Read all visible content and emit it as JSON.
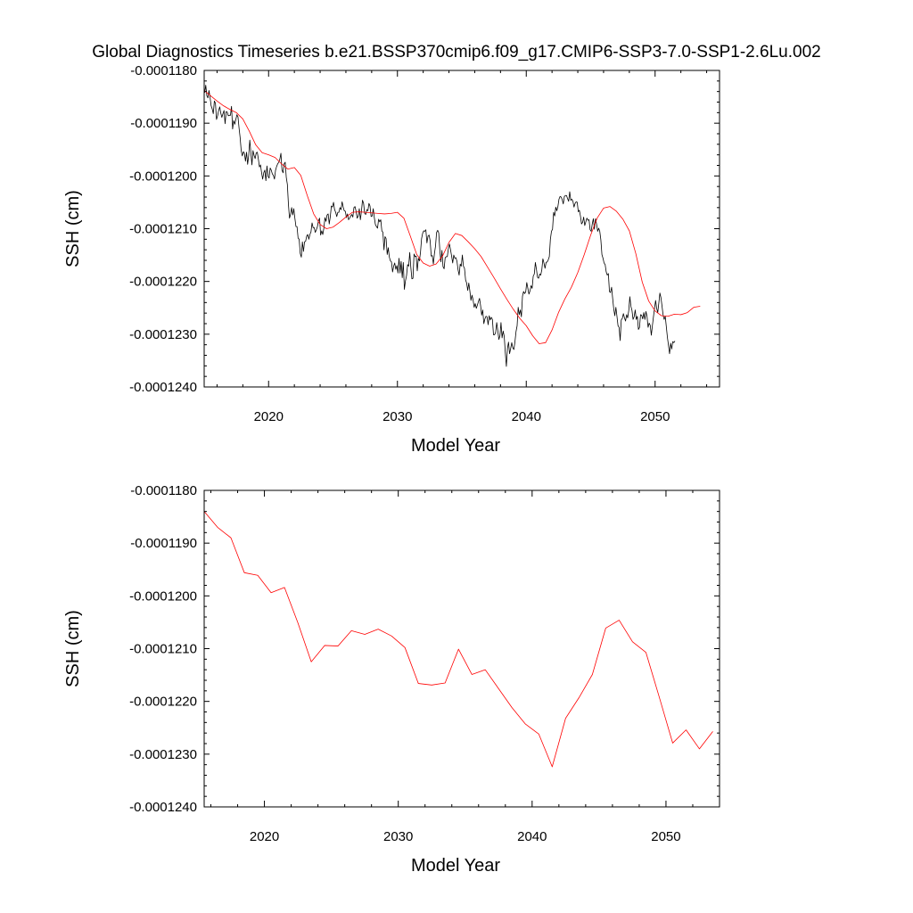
{
  "title": "Global Diagnostics Timeseries b.e21.BSSP370cmip6.f09_g17.CMIP6-SSP3-7.0-SSP1-2.6Lu.002",
  "colors": {
    "monthly": "#000000",
    "annual": "#ff0000"
  },
  "chart_data": [
    {
      "type": "line",
      "xlabel": "Model Year",
      "ylabel": "SSH (cm)",
      "xlim": [
        2015,
        2055
      ],
      "ylim": [
        -0.000124,
        -0.000118
      ],
      "xticks": [
        2020,
        2030,
        2040,
        2050
      ],
      "xtick_labels": [
        "2020",
        "2030",
        "2040",
        "2050"
      ],
      "yticks": [
        -0.000124,
        -0.000123,
        -0.000122,
        -0.000121,
        -0.00012,
        -0.000119,
        -0.000118
      ],
      "ytick_labels": [
        "-0.0001240",
        "-0.0001230",
        "-0.0001220",
        "-0.0001210",
        "-0.0001200",
        "-0.0001190",
        "-0.0001180"
      ],
      "series": [
        {
          "name": "monthly",
          "color": "#000000",
          "x_start": 2015.04,
          "x_step": 0.08333,
          "values": [
            -0.00011842,
            -0.00011828,
            -0.00011848,
            -0.00011852,
            -0.00011838,
            -0.00011851,
            -0.00011867,
            -0.00011873,
            -0.00011882,
            -0.00011858,
            -0.00011862,
            -0.00011893,
            -0.00011886,
            -0.00011876,
            -0.00011869,
            -0.00011881,
            -0.00011889,
            -0.00011882,
            -0.00011876,
            -0.00011901,
            -0.00011878,
            -0.00011879,
            -0.00011886,
            -0.00011885,
            -0.00011885,
            -0.00011868,
            -0.00011911,
            -0.00011895,
            -0.00011902,
            -0.00011893,
            -0.00011884,
            -0.00011888,
            -0.00011909,
            -0.00011927,
            -0.00011952,
            -0.00011962,
            -0.00011954,
            -0.00011957,
            -0.00011972,
            -0.00011955,
            -0.00011978,
            -0.00011961,
            -0.00011932,
            -0.00011956,
            -0.00011979,
            -0.00011952,
            -0.00011961,
            -0.00011967,
            -0.00011956,
            -0.00011955,
            -0.00011968,
            -0.00011983,
            -0.00011979,
            -0.00011994,
            -0.00012006,
            -0.00011994,
            -0.00011989,
            -0.00012009,
            -0.00011981,
            -0.00012001,
            -0.00012004,
            -0.00011985,
            -0.00011989,
            -0.00011996,
            -0.00011999,
            -0.00012006,
            -0.00011989,
            -0.00011982,
            -0.00011977,
            -0.00011974,
            -0.00011968,
            -0.00011957,
            -0.00011989,
            -0.00011994,
            -0.00011977,
            -0.00011974,
            -0.00012003,
            -0.00012016,
            -0.00012054,
            -0.0001208,
            -0.00012073,
            -0.0001206,
            -0.00012074,
            -0.00012062,
            -0.0001208,
            -0.00012096,
            -0.00012096,
            -0.00012118,
            -0.0001212,
            -0.00012147,
            -0.00012154,
            -0.00012125,
            -0.00012143,
            -0.00012125,
            -0.00012124,
            -0.00012114,
            -0.00012111,
            -0.0001212,
            -0.00012111,
            -0.00012106,
            -0.00012089,
            -0.00012098,
            -0.00012098,
            -0.00012107,
            -0.00012102,
            -0.00012096,
            -0.00012085,
            -0.0001208,
            -0.00012112,
            -0.00012104,
            -0.00012111,
            -0.00012099,
            -0.00012079,
            -0.00012086,
            -0.00012074,
            -0.00012072,
            -0.00012091,
            -0.00012077,
            -0.00012057,
            -0.00012059,
            -0.0001205,
            -0.00012064,
            -0.00012069,
            -0.00012077,
            -0.00012069,
            -0.00012069,
            -0.0001206,
            -0.00012064,
            -0.00012049,
            -0.00012059,
            -0.00012066,
            -0.00012067,
            -0.00012079,
            -0.00012072,
            -0.00012083,
            -0.0001208,
            -0.00012076,
            -0.00012073,
            -0.00012078,
            -0.0001206,
            -0.00012058,
            -0.00012067,
            -0.0001208,
            -0.00012076,
            -0.00012062,
            -0.00012083,
            -0.00012067,
            -0.00012046,
            -0.00012052,
            -0.00012071,
            -0.00012073,
            -0.00012064,
            -0.00012066,
            -0.00012052,
            -0.00012057,
            -0.00012077,
            -0.00012076,
            -0.00012062,
            -0.00012079,
            -0.00012092,
            -0.00012096,
            -0.00012099,
            -0.00012082,
            -0.00012087,
            -0.00012083,
            -0.00012104,
            -0.00012107,
            -0.0001214,
            -0.00012115,
            -0.00012119,
            -0.00012149,
            -0.00012136,
            -0.00012154,
            -0.00012161,
            -0.00012163,
            -0.00012182,
            -0.00012171,
            -0.00012165,
            -0.00012177,
            -0.0001217,
            -0.00012184,
            -0.00012156,
            -0.00012184,
            -0.00012162,
            -0.00012193,
            -0.00012164,
            -0.00012215,
            -0.00012199,
            -0.00012189,
            -0.00012168,
            -0.00012171,
            -0.00012145,
            -0.00012173,
            -0.00012195,
            -0.00012194,
            -0.00012148,
            -0.00012153,
            -0.00012152,
            -0.0001218,
            -0.00012156,
            -0.00012161,
            -0.00012145,
            -0.00012119,
            -0.00012109,
            -0.00012104,
            -0.00012105,
            -0.00012102,
            -0.00012127,
            -0.00012114,
            -0.00012112,
            -0.00012123,
            -0.00012152,
            -0.00012151,
            -0.00012167,
            -0.00012147,
            -0.00012133,
            -0.00012107,
            -0.00012103,
            -0.00012108,
            -0.0001214,
            -0.00012163,
            -0.00012141,
            -0.00012172,
            -0.00012176,
            -0.00012155,
            -0.00012153,
            -0.00012153,
            -0.00012137,
            -0.00012129,
            -0.0001214,
            -0.00012152,
            -0.00012165,
            -0.0001215,
            -0.00012156,
            -0.00012155,
            -0.00012162,
            -0.00012178,
            -0.00012188,
            -0.00012167,
            -0.00012171,
            -0.0001215,
            -0.00012171,
            -0.00012175,
            -0.00012197,
            -0.00012203,
            -0.00012217,
            -0.00012203,
            -0.00012218,
            -0.00012236,
            -0.00012226,
            -0.00012235,
            -0.00012249,
            -0.00012242,
            -0.00012251,
            -0.00012245,
            -0.00012238,
            -0.00012232,
            -0.00012246,
            -0.00012264,
            -0.00012254,
            -0.0001228,
            -0.00012271,
            -0.00012266,
            -0.00012267,
            -0.00012282,
            -0.00012265,
            -0.00012273,
            -0.00012268,
            -0.00012272,
            -0.00012301,
            -0.00012301,
            -0.00012297,
            -0.00012278,
            -0.00012293,
            -0.0001231,
            -0.00012303,
            -0.00012278,
            -0.00012307,
            -0.00012294,
            -0.00012304,
            -0.00012335,
            -0.00012361,
            -0.00012327,
            -0.00012315,
            -0.00012337,
            -0.00012327,
            -0.00012316,
            -0.00012326,
            -0.00012329,
            -0.00012314,
            -0.00012295,
            -0.00012284,
            -0.00012249,
            -0.00012263,
            -0.00012254,
            -0.00012267,
            -0.00012228,
            -0.00012219,
            -0.00012223,
            -0.0001222,
            -0.00012202,
            -0.00012213,
            -0.00012224,
            -0.00012218,
            -0.00012208,
            -0.00012213,
            -0.0001219,
            -0.00012186,
            -0.00012164,
            -0.00012177,
            -0.00012192,
            -0.00012194,
            -0.00012186,
            -0.00012188,
            -0.00012178,
            -0.00012157,
            -0.00012165,
            -0.00012175,
            -0.00012164,
            -0.00012163,
            -0.00012159,
            -0.00012153,
            -0.0001212,
            -0.00012105,
            -0.00012101,
            -0.00012069,
            -0.00012076,
            -0.00012059,
            -0.00012066,
            -0.00012058,
            -0.00012044,
            -0.00012039,
            -0.0001204,
            -0.00012045,
            -0.00012053,
            -0.00012039,
            -0.00012037,
            -0.00012037,
            -0.00012043,
            -0.00012048,
            -0.0001203,
            -0.00012046,
            -0.00012044,
            -0.00012048,
            -0.00012059,
            -0.00012052,
            -0.00012049,
            -0.0001205,
            -0.00012068,
            -0.00012065,
            -0.00012076,
            -0.00012091,
            -0.00012088,
            -0.00012078,
            -0.00012094,
            -0.00012087,
            -0.0001208,
            -0.00012084,
            -0.00012083,
            -0.00012102,
            -0.00012105,
            -0.00012091,
            -0.00012081,
            -0.00012101,
            -0.00012081,
            -0.00012091,
            -0.00012105,
            -0.00012099,
            -0.00012105,
            -0.00012121,
            -0.00012149,
            -0.00012156,
            -0.00012165,
            -0.00012168,
            -0.00012182,
            -0.00012188,
            -0.00012185,
            -0.00012219,
            -0.00012221,
            -0.00012211,
            -0.00012232,
            -0.00012252,
            -0.00012265,
            -0.00012249,
            -0.00012266,
            -0.00012284,
            -0.00012287,
            -0.00012312,
            -0.00012273,
            -0.0001227,
            -0.00012261,
            -0.00012269,
            -0.00012275,
            -0.00012263,
            -0.00012269,
            -0.00012255,
            -0.00012229,
            -0.00012247,
            -0.00012255,
            -0.00012272,
            -0.00012267,
            -0.00012254,
            -0.00012272,
            -0.00012266,
            -0.00012291,
            -0.00012287,
            -0.00012263,
            -0.00012264,
            -0.00012271,
            -0.00012259,
            -0.00012272,
            -0.00012257,
            -0.00012266,
            -0.00012287,
            -0.00012279,
            -0.00012283,
            -0.00012302,
            -0.00012284,
            -0.00012267,
            -0.00012251,
            -0.00012236,
            -0.00012251,
            -0.00012259,
            -0.00012241,
            -0.00012222,
            -0.00012231,
            -0.00012247,
            -0.00012264,
            -0.00012272,
            -0.00012266,
            -0.00012286,
            -0.00012306,
            -0.00012321,
            -0.00012337,
            -0.00012317,
            -0.00012328,
            -0.00012314,
            -0.00012316,
            -0.00012313
          ]
        },
        {
          "name": "smoothed",
          "color": "#ff0000",
          "x": [
            2015.0,
            2015.5,
            2016.0,
            2016.5,
            2017.0,
            2017.5,
            2018.0,
            2018.5,
            2019.0,
            2019.5,
            2020.0,
            2020.5,
            2021.0,
            2021.5,
            2022.0,
            2022.5,
            2023.0,
            2023.5,
            2024.0,
            2024.5,
            2025.0,
            2025.5,
            2026.0,
            2026.5,
            2027.0,
            2027.5,
            2028.0,
            2028.5,
            2029.0,
            2029.5,
            2030.0,
            2030.5,
            2031.0,
            2031.5,
            2032.0,
            2032.5,
            2033.0,
            2033.5,
            2034.0,
            2034.5,
            2035.0,
            2035.5,
            2036.0,
            2036.5,
            2037.0,
            2037.5,
            2038.0,
            2038.5,
            2039.0,
            2039.5,
            2040.0,
            2040.5,
            2041.0,
            2041.5,
            2042.0,
            2042.5,
            2043.0,
            2043.5,
            2044.0,
            2044.5,
            2045.0,
            2045.5,
            2046.0,
            2046.5,
            2047.0,
            2047.5,
            2048.0,
            2048.5,
            2049.0,
            2049.5,
            2050.0,
            2050.5,
            2051.0,
            2051.5,
            2052.0,
            2052.5,
            2053.0,
            2053.5
          ],
          "values": [
            -0.00011838,
            -0.00011848,
            -0.00011858,
            -0.00011867,
            -0.00011874,
            -0.0001188,
            -0.00011892,
            -0.00011915,
            -0.00011941,
            -0.00011956,
            -0.0001196,
            -0.00011965,
            -0.00011977,
            -0.00011987,
            -0.00011984,
            -0.00011999,
            -0.00012037,
            -0.00012072,
            -0.00012092,
            -0.000121,
            -0.00012097,
            -0.00012088,
            -0.00012078,
            -0.00012069,
            -0.00012068,
            -0.00012069,
            -0.0001207,
            -0.00012071,
            -0.00012072,
            -0.00012071,
            -0.00012069,
            -0.0001208,
            -0.00012114,
            -0.00012149,
            -0.00012165,
            -0.00012171,
            -0.00012167,
            -0.00012152,
            -0.00012126,
            -0.00012109,
            -0.00012113,
            -0.00012125,
            -0.00012138,
            -0.00012153,
            -0.00012173,
            -0.00012193,
            -0.00012214,
            -0.00012234,
            -0.00012253,
            -0.0001227,
            -0.00012284,
            -0.00012303,
            -0.00012318,
            -0.00012316,
            -0.00012292,
            -0.00012259,
            -0.00012233,
            -0.00012211,
            -0.00012183,
            -0.00012149,
            -0.00012112,
            -0.0001208,
            -0.00012061,
            -0.00012058,
            -0.00012067,
            -0.00012082,
            -0.00012104,
            -0.00012147,
            -0.00012201,
            -0.00012237,
            -0.00012256,
            -0.00012265,
            -0.00012266,
            -0.00012262,
            -0.00012263,
            -0.00012259,
            -0.00012249,
            -0.00012247
          ]
        }
      ]
    },
    {
      "type": "line",
      "xlabel": "Model Year",
      "ylabel": "SSH (cm)",
      "xlim": [
        2015.5,
        2054.0
      ],
      "ylim": [
        -0.000124,
        -0.000118
      ],
      "xticks": [
        2020,
        2030,
        2040,
        2050
      ],
      "xtick_labels": [
        "2020",
        "2030",
        "2040",
        "2050"
      ],
      "yticks": [
        -0.000124,
        -0.000123,
        -0.000122,
        -0.000121,
        -0.00012,
        -0.000119,
        -0.000118
      ],
      "ytick_labels": [
        "-0.0001240",
        "-0.0001230",
        "-0.0001220",
        "-0.0001210",
        "-0.0001200",
        "-0.0001190",
        "-0.0001180"
      ],
      "series": [
        {
          "name": "annual",
          "color": "#ff0000",
          "x": [
            2015.5,
            2016.5,
            2017.5,
            2018.5,
            2019.5,
            2020.5,
            2021.5,
            2022.5,
            2023.5,
            2024.5,
            2025.5,
            2026.5,
            2027.5,
            2028.5,
            2029.5,
            2030.5,
            2031.5,
            2032.5,
            2033.5,
            2034.5,
            2035.5,
            2036.5,
            2037.5,
            2038.5,
            2039.5,
            2040.5,
            2041.5,
            2042.5,
            2043.5,
            2044.5,
            2045.5,
            2046.5,
            2047.5,
            2048.5,
            2049.5,
            2050.5,
            2051.5,
            2052.5,
            2053.5
          ],
          "values": [
            -0.0001184,
            -0.0001187,
            -0.0001189,
            -0.00011956,
            -0.00011961,
            -0.00011994,
            -0.00011984,
            -0.00012051,
            -0.00012125,
            -0.00012094,
            -0.00012095,
            -0.00012066,
            -0.00012073,
            -0.00012063,
            -0.00012076,
            -0.00012098,
            -0.00012166,
            -0.00012169,
            -0.00012165,
            -0.00012101,
            -0.00012149,
            -0.0001214,
            -0.00012176,
            -0.00012212,
            -0.00012243,
            -0.00012262,
            -0.00012324,
            -0.00012232,
            -0.00012193,
            -0.00012149,
            -0.00012061,
            -0.00012046,
            -0.00012087,
            -0.00012107,
            -0.00012192,
            -0.00012279,
            -0.00012254,
            -0.0001229,
            -0.00012257
          ]
        }
      ]
    }
  ]
}
